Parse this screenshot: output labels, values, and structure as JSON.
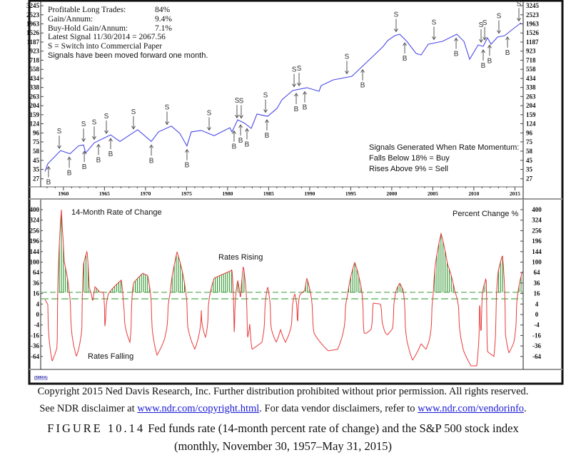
{
  "upper_info": {
    "rows": [
      {
        "label": "Profitable Long Trades:",
        "value": "84%"
      },
      {
        "label": "Gain/Annum:",
        "value": "9.4%"
      },
      {
        "label": "Buy-Hold Gain/Annum:",
        "value": "7.1%"
      }
    ],
    "latest_signal": "Latest Signal 11/30/2014 = 2067.56",
    "legend_s": "S = Switch into Commercial Paper",
    "moved_note": "Signals have been moved forward one month."
  },
  "signal_rules": {
    "title": "Signals Generated When Rate Momentum:",
    "buy": "Falls Below 18% = Buy",
    "sell": "Rises Above 9% = Sell"
  },
  "lower_labels": {
    "title": "14-Month Rate of Change",
    "units": "Percent Change %",
    "rising": "Rates Rising",
    "falling": "Rates Falling"
  },
  "chart_code": "(S860A)",
  "chart_data": [
    {
      "type": "line",
      "title": "S&P 500 stock index (log scale)",
      "y_scale": "log",
      "y_ticks": [
        27,
        35,
        45,
        58,
        75,
        96,
        124,
        159,
        204,
        263,
        338,
        434,
        558,
        718,
        923,
        1187,
        1526,
        1963,
        2523,
        3245
      ],
      "x_ticks": [
        "1960",
        "1965",
        "1970",
        "1975",
        "1980",
        "1985",
        "1990",
        "1995",
        "2000",
        "2005",
        "2010",
        "2015"
      ],
      "x_tick_years": [
        1960,
        1965,
        1970,
        1975,
        1980,
        1985,
        1990,
        1995,
        2000,
        2005,
        2010,
        2015
      ],
      "line_color": "#4a4ae8",
      "series": [
        [
          1957.9,
          33
        ],
        [
          1958.25,
          41
        ],
        [
          1959.81,
          59
        ],
        [
          1960.94,
          54
        ],
        [
          1961.99,
          67
        ],
        [
          1962.6,
          69
        ],
        [
          1962.86,
          55
        ],
        [
          1963.9,
          73
        ],
        [
          1965.9,
          91
        ],
        [
          1967.03,
          76
        ],
        [
          1969.2,
          105
        ],
        [
          1970.86,
          76
        ],
        [
          1971.73,
          99
        ],
        [
          1973.29,
          116
        ],
        [
          1974.33,
          95
        ],
        [
          1975.2,
          67
        ],
        [
          1975.73,
          99
        ],
        [
          1976.94,
          103
        ],
        [
          1978.51,
          89
        ],
        [
          1980.42,
          111
        ],
        [
          1980.68,
          99
        ],
        [
          1981.38,
          138
        ],
        [
          1982.25,
          125
        ],
        [
          1983.03,
          109
        ],
        [
          1983.73,
          162
        ],
        [
          1985.03,
          152
        ],
        [
          1986.16,
          189
        ],
        [
          1986.77,
          240
        ],
        [
          1988.07,
          310
        ],
        [
          1989.81,
          336
        ],
        [
          1991.29,
          304
        ],
        [
          1991.55,
          356
        ],
        [
          1993.03,
          417
        ],
        [
          1995.29,
          460
        ],
        [
          1997.03,
          670
        ],
        [
          1999.12,
          1054
        ],
        [
          1999.64,
          1234
        ],
        [
          2000.51,
          1417
        ],
        [
          2001.12,
          1474
        ],
        [
          2001.99,
          1209
        ],
        [
          2003.12,
          865
        ],
        [
          2003.73,
          832
        ],
        [
          2004.6,
          1119
        ],
        [
          2006.33,
          1209
        ],
        [
          2008.07,
          1474
        ],
        [
          2008.94,
          1209
        ],
        [
          2009.64,
          739
        ],
        [
          2010.68,
          1096
        ],
        [
          2011.29,
          1054
        ],
        [
          2011.81,
          1335
        ],
        [
          2012.25,
          1119
        ],
        [
          2013.03,
          1362
        ],
        [
          2013.9,
          1417
        ],
        [
          2014.77,
          1659
        ],
        [
          2015.9,
          2021
        ]
      ],
      "signals": [
        {
          "year": 1959.64,
          "type": "S"
        },
        {
          "year": 1962.6,
          "type": "S"
        },
        {
          "year": 1963.9,
          "type": "S"
        },
        {
          "year": 1965.38,
          "type": "S"
        },
        {
          "year": 1968.68,
          "type": "S"
        },
        {
          "year": 1972.77,
          "type": "S"
        },
        {
          "year": 1977.9,
          "type": "S"
        },
        {
          "year": 1981.29,
          "type": "S"
        },
        {
          "year": 1981.81,
          "type": "S"
        },
        {
          "year": 1984.77,
          "type": "S"
        },
        {
          "year": 1988.25,
          "type": "S"
        },
        {
          "year": 1988.86,
          "type": "S"
        },
        {
          "year": 1994.68,
          "type": "S"
        },
        {
          "year": 2000.68,
          "type": "S"
        },
        {
          "year": 2005.29,
          "type": "S"
        },
        {
          "year": 2011.03,
          "type": "S"
        },
        {
          "year": 2011.47,
          "type": "S"
        },
        {
          "year": 2013.2,
          "type": "S"
        },
        {
          "year": 2015.64,
          "type": "S"
        },
        {
          "year": 1958.33,
          "type": "B"
        },
        {
          "year": 1960.86,
          "type": "B"
        },
        {
          "year": 1962.69,
          "type": "B"
        },
        {
          "year": 1964.42,
          "type": "B"
        },
        {
          "year": 1965.9,
          "type": "B"
        },
        {
          "year": 1970.86,
          "type": "B"
        },
        {
          "year": 1975.2,
          "type": "B"
        },
        {
          "year": 1980.94,
          "type": "B"
        },
        {
          "year": 1981.73,
          "type": "B"
        },
        {
          "year": 1982.51,
          "type": "B"
        },
        {
          "year": 1984.94,
          "type": "B"
        },
        {
          "year": 1988.51,
          "type": "B"
        },
        {
          "year": 1989.55,
          "type": "B"
        },
        {
          "year": 1996.6,
          "type": "B"
        },
        {
          "year": 2001.73,
          "type": "B"
        },
        {
          "year": 2007.99,
          "type": "B"
        },
        {
          "year": 2011.29,
          "type": "B"
        },
        {
          "year": 2012.07,
          "type": "B"
        },
        {
          "year": 2014.25,
          "type": "B"
        }
      ]
    },
    {
      "type": "line",
      "title": "Fed funds rate 14-Month Rate of Change",
      "ylabel": "Percent Change %",
      "y_scale": "signed-sqrt",
      "y_ticks": [
        400,
        324,
        256,
        196,
        144,
        100,
        64,
        36,
        16,
        4,
        0,
        -4,
        -16,
        -36,
        -64
      ],
      "thresholds": [
        18,
        9
      ],
      "line_color": "#e83a3a",
      "bar_color": "#1a8a1a",
      "series": [
        [
          1957.9,
          8
        ],
        [
          1958.25,
          3.6
        ],
        [
          1958.77,
          -80
        ],
        [
          1959.38,
          -39
        ],
        [
          1959.55,
          93
        ],
        [
          1959.9,
          400
        ],
        [
          1960.0,
          285
        ],
        [
          1960.25,
          101
        ],
        [
          1960.86,
          18
        ],
        [
          1961.38,
          -33
        ],
        [
          1961.73,
          -64
        ],
        [
          1962.0,
          -44
        ],
        [
          1962.42,
          -5
        ],
        [
          1962.6,
          93
        ],
        [
          1963.03,
          147
        ],
        [
          1963.29,
          27
        ],
        [
          1963.73,
          6
        ],
        [
          1964.0,
          28
        ],
        [
          1964.6,
          18
        ],
        [
          1965.03,
          18
        ],
        [
          1965.2,
          -5
        ],
        [
          1965.64,
          16
        ],
        [
          1966.33,
          28
        ],
        [
          1967.2,
          43
        ],
        [
          1967.47,
          3.6
        ],
        [
          1968.25,
          -28
        ],
        [
          1968.68,
          36
        ],
        [
          1969.81,
          62
        ],
        [
          1970.42,
          55
        ],
        [
          1970.94,
          -5
        ],
        [
          1971.55,
          -60
        ],
        [
          1972.42,
          -24
        ],
        [
          1973.12,
          14
        ],
        [
          1973.73,
          101
        ],
        [
          1973.99,
          143
        ],
        [
          1975.03,
          21
        ],
        [
          1975.29,
          -5
        ],
        [
          1976.16,
          -44
        ],
        [
          1976.94,
          1
        ],
        [
          1977.46,
          -19
        ],
        [
          1977.9,
          8
        ],
        [
          1978.51,
          48
        ],
        [
          1980.51,
          69
        ],
        [
          1980.68,
          73
        ],
        [
          1980.94,
          -12.5
        ],
        [
          1981.38,
          43
        ],
        [
          1981.73,
          8
        ],
        [
          1982.07,
          86
        ],
        [
          1982.6,
          -19
        ],
        [
          1982.86,
          -2.7
        ],
        [
          1983.12,
          -44
        ],
        [
          1984.33,
          -28
        ],
        [
          1985.03,
          28
        ],
        [
          1985.47,
          -7
        ],
        [
          1986.07,
          -28
        ],
        [
          1986.6,
          -8
        ],
        [
          1987.2,
          -28
        ],
        [
          1987.9,
          -5
        ],
        [
          1988.33,
          16
        ],
        [
          1988.68,
          -2.7
        ],
        [
          1988.94,
          14
        ],
        [
          1989.55,
          21
        ],
        [
          1989.81,
          48
        ],
        [
          1990.68,
          -12.5
        ],
        [
          1992.42,
          -48
        ],
        [
          1993.55,
          -44
        ],
        [
          1994.77,
          14
        ],
        [
          1995.64,
          99
        ],
        [
          1995.9,
          76
        ],
        [
          1996.51,
          18
        ],
        [
          1996.77,
          -12.5
        ],
        [
          1997.03,
          -13
        ],
        [
          1997.64,
          -8
        ],
        [
          1997.9,
          4.7
        ],
        [
          1998.77,
          4
        ],
        [
          1999.38,
          -12.5
        ],
        [
          1999.64,
          -15
        ],
        [
          2000.25,
          -7
        ],
        [
          2000.68,
          21
        ],
        [
          2001.12,
          36
        ],
        [
          2001.55,
          21
        ],
        [
          2001.99,
          -24
        ],
        [
          2002.68,
          -76
        ],
        [
          2003.73,
          -31
        ],
        [
          2004.33,
          -44
        ],
        [
          2004.77,
          -21
        ],
        [
          2005.2,
          14
        ],
        [
          2005.47,
          93
        ],
        [
          2006.16,
          240
        ],
        [
          2006.94,
          93
        ],
        [
          2007.81,
          21
        ],
        [
          2008.33,
          0.3
        ],
        [
          2008.94,
          -50
        ],
        [
          2009.81,
          -96
        ],
        [
          2010.51,
          -96
        ],
        [
          2010.86,
          6
        ],
        [
          2011.03,
          -12.5
        ],
        [
          2011.2,
          18
        ],
        [
          2011.64,
          48
        ],
        [
          2011.81,
          -50
        ],
        [
          2012.6,
          -64
        ],
        [
          2013.12,
          69
        ],
        [
          2013.64,
          128
        ],
        [
          2013.99,
          -12.5
        ],
        [
          2014.42,
          -54
        ],
        [
          2015.03,
          -28
        ],
        [
          2015.72,
          36
        ],
        [
          2016.07,
          69
        ]
      ]
    }
  ],
  "footer": {
    "line1": "Copyright 2015 Ned Davis Research, Inc. Further distribution prohibited without prior permission. All rights reserved.",
    "line2_pre": "See NDR disclaimer at ",
    "link1": "www.ndr.com/copyright.html",
    "line2_mid": ". For data vendor disclaimers, refer to ",
    "link2": "www.ndr.com/vendorinfo",
    "line2_post": ".",
    "figure_label": "FIGURE 10.14",
    "caption1": " Fed funds rate (14-month percent rate of change) and the S&P 500 stock index",
    "caption2": "(monthly, November 30, 1957–May 31, 2015)"
  }
}
